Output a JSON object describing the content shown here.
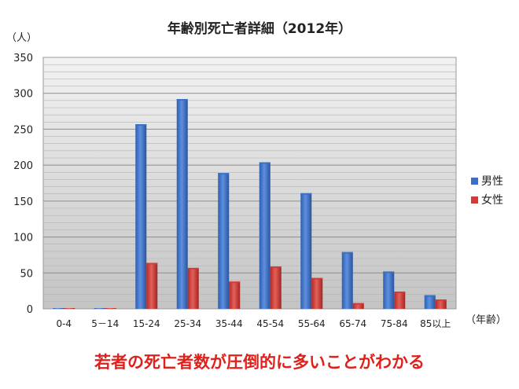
{
  "chart_data": {
    "type": "bar",
    "title": "年齢別死亡者詳細（2012年）",
    "ylabel": "（人）",
    "xlabel": "（年齢）",
    "ylim": [
      0,
      350
    ],
    "yticks": [
      0,
      50,
      100,
      150,
      200,
      250,
      300,
      350
    ],
    "categories": [
      "0-4",
      "5－14",
      "15-24",
      "25-34",
      "35-44",
      "45-54",
      "55-64",
      "65-74",
      "75-84",
      "85以上"
    ],
    "series": [
      {
        "name": "男性",
        "color": "#3a6fc4",
        "values": [
          0,
          0,
          257,
          292,
          189,
          204,
          161,
          79,
          52,
          19
        ]
      },
      {
        "name": "女性",
        "color": "#d23b36",
        "values": [
          0,
          0,
          64,
          57,
          38,
          59,
          43,
          8,
          24,
          13
        ]
      }
    ],
    "grid": true,
    "legend_position": "right"
  },
  "annotation": "若者の死亡者数が圧倒的に多いことがわかる"
}
